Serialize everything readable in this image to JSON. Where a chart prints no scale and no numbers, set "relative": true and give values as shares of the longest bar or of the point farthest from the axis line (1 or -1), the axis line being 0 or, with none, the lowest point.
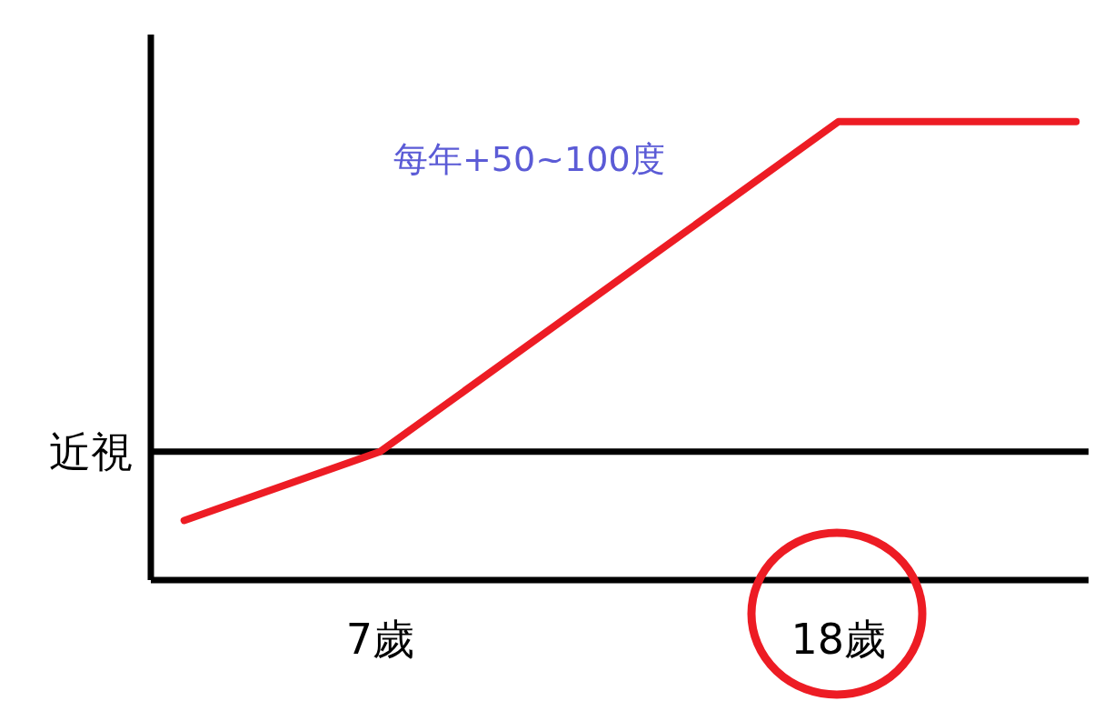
{
  "chart_data": {
    "type": "line",
    "relative": true,
    "x": [
      2.3,
      7,
      18,
      23.7
    ],
    "series": [
      {
        "color": "#ed1c24",
        "values": [
          0.13,
          0.28,
          1,
          1
        ]
      }
    ],
    "xlim": [
      1.5,
      24
    ],
    "xticks": [
      {
        "value": 7,
        "label": "7歲"
      },
      {
        "value": 18,
        "label": "18歲"
      }
    ],
    "ref_lines": [
      {
        "axis": "y",
        "value": 0.28,
        "label": "近視",
        "color": "#000000"
      }
    ],
    "annotations": [
      "每年+50~100度"
    ],
    "grid": false,
    "legend": false,
    "marker": "none",
    "line_style": "solid"
  }
}
